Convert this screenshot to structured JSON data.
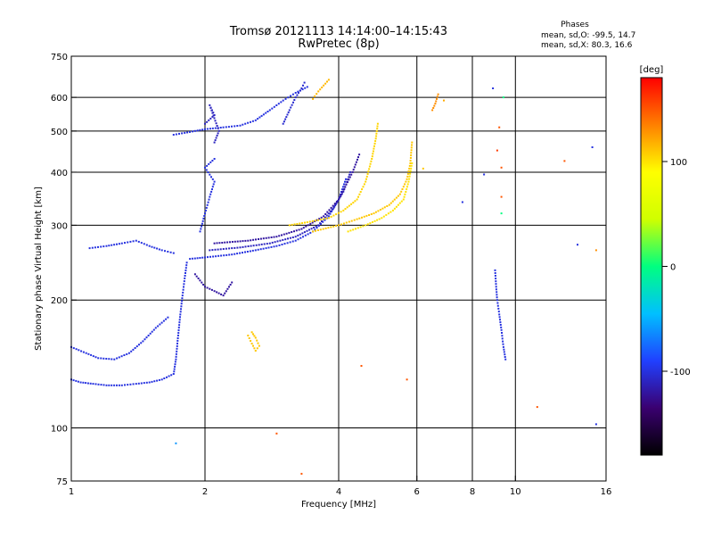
{
  "chart_data": {
    "type": "scatter",
    "title": "Tromsø 20121113 14:14:00–14:15:43",
    "subtitle": "RwPretec (8p)",
    "xlabel": "Frequency [MHz]",
    "ylabel": "Stationary phase Virtual Height [km]",
    "x_scale": "log",
    "y_scale": "log",
    "xlim": [
      1,
      16
    ],
    "ylim": [
      75,
      750
    ],
    "x_ticks": [
      1,
      2,
      4,
      6,
      8,
      10,
      16
    ],
    "y_ticks": [
      75,
      100,
      200,
      300,
      400,
      500,
      600,
      750
    ],
    "x_grid": [
      1,
      2,
      4,
      6,
      8,
      10,
      16
    ],
    "y_grid": [
      100,
      200,
      300,
      400,
      500,
      600
    ],
    "grid": true,
    "phase_stats": {
      "heading": "Phases",
      "line_o": "mean, sd,O: -99.5, 14.7",
      "line_x": "mean, sd,X:  80.3, 16.6"
    },
    "colorbar": {
      "label": "[deg]",
      "ticks": [
        100,
        0,
        -100
      ],
      "range": [
        -180,
        180
      ],
      "colors": [
        "#000000",
        "#3a0070",
        "#2040ff",
        "#00c0ff",
        "#00ff80",
        "#d0ff00",
        "#ffff00",
        "#ff8000",
        "#ff0000"
      ]
    },
    "traces": [
      {
        "name": "",
        "phase": -100,
        "points": [
          [
            1.0,
            130
          ],
          [
            1.05,
            128
          ],
          [
            1.12,
            127
          ],
          [
            1.2,
            126
          ],
          [
            1.3,
            126
          ],
          [
            1.4,
            127
          ],
          [
            1.5,
            128
          ],
          [
            1.6,
            130
          ],
          [
            1.7,
            134
          ],
          [
            1.72,
            145
          ],
          [
            1.74,
            165
          ],
          [
            1.76,
            185
          ],
          [
            1.78,
            205
          ],
          [
            1.8,
            225
          ],
          [
            1.82,
            245
          ]
        ]
      },
      {
        "name": "",
        "phase": -100,
        "points": [
          [
            1.0,
            155
          ],
          [
            1.08,
            150
          ],
          [
            1.15,
            146
          ],
          [
            1.25,
            145
          ],
          [
            1.35,
            150
          ],
          [
            1.45,
            160
          ],
          [
            1.55,
            172
          ],
          [
            1.65,
            182
          ]
        ]
      },
      {
        "name": "",
        "phase": -100,
        "points": [
          [
            1.85,
            250
          ],
          [
            2.0,
            252
          ],
          [
            2.3,
            256
          ],
          [
            2.6,
            262
          ],
          [
            2.9,
            268
          ],
          [
            3.2,
            276
          ],
          [
            3.5,
            290
          ],
          [
            3.8,
            315
          ],
          [
            4.0,
            345
          ],
          [
            4.15,
            385
          ]
        ]
      },
      {
        "name": "",
        "phase": -110,
        "points": [
          [
            2.05,
            262
          ],
          [
            2.4,
            266
          ],
          [
            2.8,
            272
          ],
          [
            3.2,
            282
          ],
          [
            3.6,
            300
          ],
          [
            3.9,
            330
          ],
          [
            4.1,
            360
          ],
          [
            4.25,
            400
          ]
        ]
      },
      {
        "name": "",
        "phase": -120,
        "points": [
          [
            2.1,
            272
          ],
          [
            2.5,
            276
          ],
          [
            2.9,
            282
          ],
          [
            3.3,
            294
          ],
          [
            3.7,
            315
          ],
          [
            4.0,
            345
          ],
          [
            4.3,
            400
          ],
          [
            4.45,
            440
          ]
        ]
      },
      {
        "name": "",
        "phase": -100,
        "points": [
          [
            1.1,
            265
          ],
          [
            1.2,
            268
          ],
          [
            1.3,
            272
          ],
          [
            1.4,
            276
          ],
          [
            1.5,
            268
          ],
          [
            1.6,
            262
          ],
          [
            1.7,
            258
          ]
        ]
      },
      {
        "name": "",
        "phase": -100,
        "points": [
          [
            1.7,
            490
          ],
          [
            1.8,
            495
          ],
          [
            1.9,
            500
          ],
          [
            2.0,
            505
          ],
          [
            2.2,
            510
          ],
          [
            2.4,
            515
          ],
          [
            2.6,
            530
          ],
          [
            2.8,
            560
          ],
          [
            3.0,
            590
          ],
          [
            3.2,
            615
          ],
          [
            3.4,
            635
          ]
        ]
      },
      {
        "name": "",
        "phase": -110,
        "points": [
          [
            2.0,
            520
          ],
          [
            2.1,
            545
          ],
          [
            2.05,
            575
          ],
          [
            2.15,
            500
          ],
          [
            2.1,
            470
          ]
        ]
      },
      {
        "name": "",
        "phase": -100,
        "points": [
          [
            1.95,
            290
          ],
          [
            2.0,
            320
          ],
          [
            2.05,
            350
          ],
          [
            2.1,
            380
          ],
          [
            2.0,
            410
          ],
          [
            2.1,
            430
          ]
        ]
      },
      {
        "name": "",
        "phase": -120,
        "points": [
          [
            1.9,
            230
          ],
          [
            2.0,
            215
          ],
          [
            2.1,
            210
          ],
          [
            2.2,
            205
          ],
          [
            2.3,
            220
          ]
        ]
      },
      {
        "name": "",
        "phase": -105,
        "points": [
          [
            3.0,
            520
          ],
          [
            3.1,
            560
          ],
          [
            3.2,
            600
          ],
          [
            3.3,
            630
          ],
          [
            3.35,
            650
          ]
        ]
      },
      {
        "name": "",
        "phase": 105,
        "points": [
          [
            3.1,
            300
          ],
          [
            3.4,
            305
          ],
          [
            3.8,
            312
          ],
          [
            4.1,
            325
          ],
          [
            4.4,
            345
          ],
          [
            4.6,
            380
          ],
          [
            4.75,
            430
          ],
          [
            4.85,
            480
          ],
          [
            4.9,
            520
          ]
        ]
      },
      {
        "name": "",
        "phase": 110,
        "points": [
          [
            3.5,
            290
          ],
          [
            4.0,
            300
          ],
          [
            4.4,
            310
          ],
          [
            4.8,
            320
          ],
          [
            5.2,
            335
          ],
          [
            5.5,
            355
          ],
          [
            5.7,
            385
          ],
          [
            5.8,
            420
          ],
          [
            5.85,
            470
          ]
        ]
      },
      {
        "name": "",
        "phase": 100,
        "points": [
          [
            4.2,
            290
          ],
          [
            4.6,
            300
          ],
          [
            5.0,
            312
          ],
          [
            5.3,
            325
          ],
          [
            5.6,
            345
          ],
          [
            5.75,
            380
          ],
          [
            5.85,
            420
          ]
        ]
      },
      {
        "name": "",
        "phase": 115,
        "points": [
          [
            3.5,
            595
          ],
          [
            3.6,
            620
          ],
          [
            3.7,
            640
          ],
          [
            3.8,
            660
          ]
        ]
      },
      {
        "name": "",
        "phase": 110,
        "points": [
          [
            2.5,
            165
          ],
          [
            2.55,
            158
          ],
          [
            2.6,
            152
          ],
          [
            2.65,
            156
          ],
          [
            2.6,
            163
          ],
          [
            2.55,
            168
          ]
        ]
      },
      {
        "name": "",
        "phase": 130,
        "points": [
          [
            6.5,
            560
          ],
          [
            6.6,
            580
          ],
          [
            6.7,
            610
          ]
        ]
      },
      {
        "name": "",
        "phase": -100,
        "points": [
          [
            9.0,
            235
          ],
          [
            9.05,
            215
          ],
          [
            9.1,
            200
          ],
          [
            9.2,
            185
          ],
          [
            9.3,
            170
          ],
          [
            9.4,
            155
          ],
          [
            9.5,
            145
          ]
        ]
      }
    ],
    "scatter_points": [
      {
        "x": 2.9,
        "y": 97,
        "phase": 150
      },
      {
        "x": 3.3,
        "y": 78,
        "phase": 150
      },
      {
        "x": 4.5,
        "y": 140,
        "phase": 150
      },
      {
        "x": 5.7,
        "y": 130,
        "phase": 150
      },
      {
        "x": 7.6,
        "y": 340,
        "phase": -100
      },
      {
        "x": 8.5,
        "y": 395,
        "phase": -100
      },
      {
        "x": 9.1,
        "y": 450,
        "phase": 160
      },
      {
        "x": 9.2,
        "y": 510,
        "phase": 150
      },
      {
        "x": 9.3,
        "y": 410,
        "phase": 150
      },
      {
        "x": 9.3,
        "y": 350,
        "phase": 150
      },
      {
        "x": 9.3,
        "y": 320,
        "phase": 0
      },
      {
        "x": 8.9,
        "y": 630,
        "phase": -100
      },
      {
        "x": 9.4,
        "y": 600,
        "phase": 0
      },
      {
        "x": 11.2,
        "y": 112,
        "phase": 150
      },
      {
        "x": 12.9,
        "y": 425,
        "phase": 150
      },
      {
        "x": 13.8,
        "y": 270,
        "phase": -100
      },
      {
        "x": 14.9,
        "y": 458,
        "phase": -100
      },
      {
        "x": 15.2,
        "y": 262,
        "phase": 130
      },
      {
        "x": 15.2,
        "y": 102,
        "phase": -100
      },
      {
        "x": 1.72,
        "y": 92,
        "phase": -60
      },
      {
        "x": 6.9,
        "y": 590,
        "phase": 120
      },
      {
        "x": 6.2,
        "y": 408,
        "phase": 110
      }
    ]
  }
}
